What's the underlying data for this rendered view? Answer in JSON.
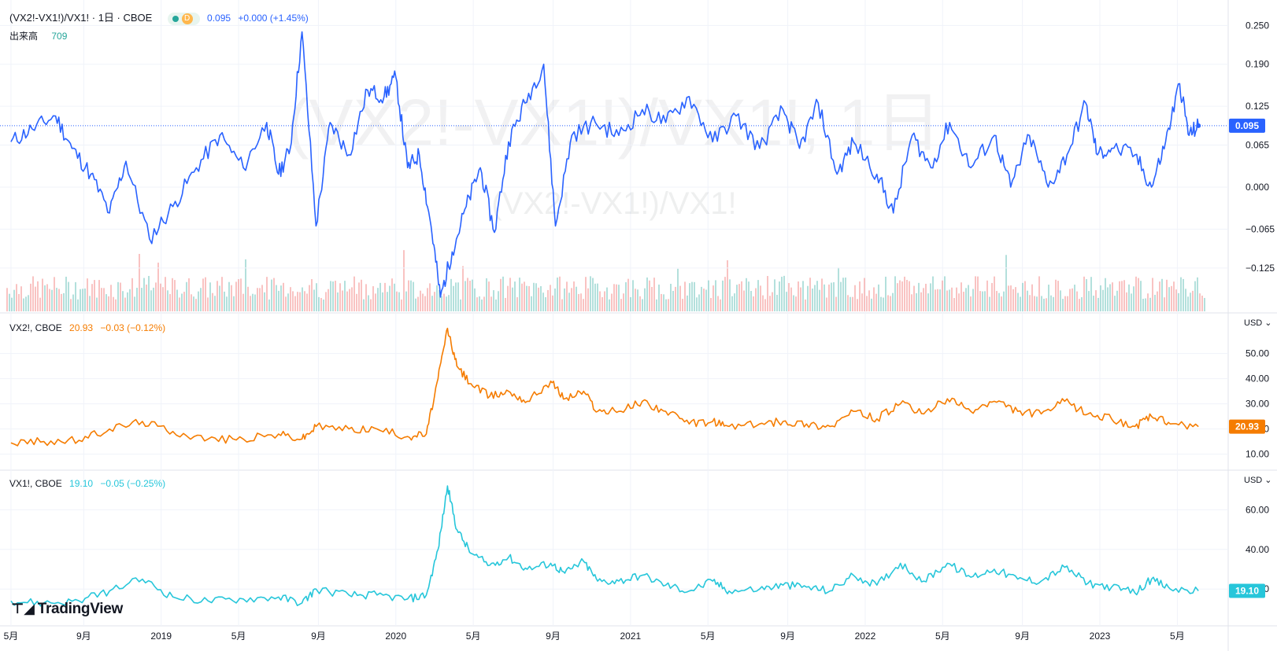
{
  "colors": {
    "main": "#2962ff",
    "vx2": "#f57c00",
    "vx1": "#26c6da",
    "vol_up": "#26a69a",
    "vol_down": "#ef5350",
    "grid": "#f0f3fa",
    "axis_text": "#131722"
  },
  "header": {
    "symbol": "(VX2!-VX1!)/VX1! · 1日 · CBOE",
    "badge_letter": "D",
    "value": "0.095",
    "change": "+0.000 (+1.45%)",
    "volume_label": "出来高",
    "volume_value": "709"
  },
  "watermark": {
    "main": "(VX2!-VX1!)/VX1!, 1日",
    "sub": "(VX2!-VX1!)/VX1!"
  },
  "pane2": {
    "symbol": "VX2!, CBOE",
    "value": "20.93",
    "change": "−0.03 (−0.12%)",
    "currency": "USD"
  },
  "pane3": {
    "symbol": "VX1!, CBOE",
    "value": "19.10",
    "change": "−0.05 (−0.25%)",
    "currency": "USD"
  },
  "logo": "TradingView",
  "chart_data": [
    {
      "type": "line",
      "name": "(VX2!-VX1!)/VX1!",
      "y_ticks": [
        "0.250",
        "0.190",
        "0.125",
        "0.065",
        "0.000",
        "−0.065",
        "−0.125"
      ],
      "y_tick_values": [
        0.25,
        0.19,
        0.125,
        0.065,
        0.0,
        -0.065,
        -0.125
      ],
      "last_value": "0.095",
      "ylim": [
        -0.175,
        0.265
      ],
      "points": [
        [
          2018.36,
          0.07
        ],
        [
          2018.45,
          0.09
        ],
        [
          2018.55,
          0.11
        ],
        [
          2018.62,
          0.06
        ],
        [
          2018.7,
          0.02
        ],
        [
          2018.78,
          -0.04
        ],
        [
          2018.85,
          0.04
        ],
        [
          2018.95,
          -0.08
        ],
        [
          2019.05,
          -0.03
        ],
        [
          2019.15,
          0.03
        ],
        [
          2019.25,
          0.08
        ],
        [
          2019.35,
          0.03
        ],
        [
          2019.45,
          0.1
        ],
        [
          2019.5,
          0.02
        ],
        [
          2019.55,
          0.06
        ],
        [
          2019.6,
          0.24
        ],
        [
          2019.66,
          -0.06
        ],
        [
          2019.72,
          0.1
        ],
        [
          2019.8,
          0.05
        ],
        [
          2019.88,
          0.15
        ],
        [
          2019.95,
          0.14
        ],
        [
          2020.0,
          0.17
        ],
        [
          2020.05,
          0.03
        ],
        [
          2020.1,
          0.05
        ],
        [
          2020.15,
          -0.06
        ],
        [
          2020.19,
          -0.17
        ],
        [
          2020.24,
          -0.1
        ],
        [
          2020.3,
          -0.03
        ],
        [
          2020.36,
          0.03
        ],
        [
          2020.42,
          -0.07
        ],
        [
          2020.48,
          0.07
        ],
        [
          2020.55,
          0.13
        ],
        [
          2020.63,
          0.19
        ],
        [
          2020.68,
          -0.06
        ],
        [
          2020.75,
          0.08
        ],
        [
          2020.85,
          0.1
        ],
        [
          2020.95,
          0.08
        ],
        [
          2021.05,
          0.12
        ],
        [
          2021.15,
          0.1
        ],
        [
          2021.25,
          0.14
        ],
        [
          2021.35,
          0.07
        ],
        [
          2021.45,
          0.11
        ],
        [
          2021.55,
          0.06
        ],
        [
          2021.65,
          0.12
        ],
        [
          2021.72,
          0.06
        ],
        [
          2021.8,
          0.13
        ],
        [
          2021.88,
          0.02
        ],
        [
          2021.95,
          0.07
        ],
        [
          2022.05,
          0.02
        ],
        [
          2022.12,
          -0.04
        ],
        [
          2022.2,
          0.08
        ],
        [
          2022.28,
          0.03
        ],
        [
          2022.36,
          0.1
        ],
        [
          2022.45,
          0.03
        ],
        [
          2022.55,
          0.08
        ],
        [
          2022.62,
          0.0
        ],
        [
          2022.7,
          0.08
        ],
        [
          2022.78,
          0.0
        ],
        [
          2022.86,
          0.05
        ],
        [
          2022.94,
          0.13
        ],
        [
          2022.99,
          0.05
        ],
        [
          2023.05,
          0.06
        ],
        [
          2023.15,
          0.05
        ],
        [
          2023.22,
          0.0
        ],
        [
          2023.28,
          0.07
        ],
        [
          2023.34,
          0.16
        ],
        [
          2023.38,
          0.08
        ],
        [
          2023.42,
          0.095
        ]
      ]
    },
    {
      "type": "line",
      "name": "VX2!",
      "y_ticks": [
        "50.00",
        "40.00",
        "30.00",
        "20.00",
        "10.00"
      ],
      "y_tick_values": [
        50,
        40,
        30,
        20,
        10
      ],
      "last_value": "20.93",
      "ylim": [
        8,
        63
      ],
      "points": [
        [
          2018.36,
          14.5
        ],
        [
          2018.5,
          15
        ],
        [
          2018.65,
          15.5
        ],
        [
          2018.78,
          20
        ],
        [
          2018.92,
          23
        ],
        [
          2019.05,
          19
        ],
        [
          2019.2,
          16
        ],
        [
          2019.35,
          16
        ],
        [
          2019.5,
          18
        ],
        [
          2019.6,
          16
        ],
        [
          2019.66,
          21
        ],
        [
          2019.8,
          20
        ],
        [
          2019.92,
          20
        ],
        [
          2020.05,
          17
        ],
        [
          2020.13,
          18
        ],
        [
          2020.18,
          40
        ],
        [
          2020.22,
          60
        ],
        [
          2020.26,
          45
        ],
        [
          2020.32,
          38
        ],
        [
          2020.4,
          33
        ],
        [
          2020.48,
          35
        ],
        [
          2020.56,
          31
        ],
        [
          2020.66,
          39
        ],
        [
          2020.72,
          32
        ],
        [
          2020.8,
          35
        ],
        [
          2020.86,
          27
        ],
        [
          2020.95,
          27
        ],
        [
          2021.05,
          31
        ],
        [
          2021.15,
          27
        ],
        [
          2021.25,
          22
        ],
        [
          2021.35,
          23
        ],
        [
          2021.42,
          21
        ],
        [
          2021.55,
          22
        ],
        [
          2021.65,
          23
        ],
        [
          2021.75,
          22
        ],
        [
          2021.85,
          21
        ],
        [
          2021.95,
          27
        ],
        [
          2022.05,
          24
        ],
        [
          2022.15,
          30
        ],
        [
          2022.25,
          26
        ],
        [
          2022.35,
          32
        ],
        [
          2022.45,
          27
        ],
        [
          2022.55,
          31
        ],
        [
          2022.65,
          27
        ],
        [
          2022.75,
          26
        ],
        [
          2022.85,
          31
        ],
        [
          2022.95,
          26
        ],
        [
          2023.05,
          24
        ],
        [
          2023.15,
          21
        ],
        [
          2023.22,
          25
        ],
        [
          2023.3,
          22
        ],
        [
          2023.42,
          20.93
        ]
      ]
    },
    {
      "type": "line",
      "name": "VX1!",
      "y_ticks": [
        "60.00",
        "40.00",
        "20.00"
      ],
      "y_tick_values": [
        60,
        40,
        20
      ],
      "last_value": "19.10",
      "ylim": [
        7,
        76
      ],
      "points": [
        [
          2018.36,
          14
        ],
        [
          2018.5,
          13
        ],
        [
          2018.65,
          14
        ],
        [
          2018.78,
          19
        ],
        [
          2018.92,
          25
        ],
        [
          2019.05,
          16
        ],
        [
          2019.2,
          14
        ],
        [
          2019.35,
          15
        ],
        [
          2019.5,
          16
        ],
        [
          2019.6,
          13
        ],
        [
          2019.66,
          20
        ],
        [
          2019.8,
          17
        ],
        [
          2019.92,
          17
        ],
        [
          2020.05,
          15
        ],
        [
          2020.13,
          17
        ],
        [
          2020.18,
          40
        ],
        [
          2020.22,
          72
        ],
        [
          2020.26,
          50
        ],
        [
          2020.32,
          38
        ],
        [
          2020.4,
          32
        ],
        [
          2020.48,
          36
        ],
        [
          2020.56,
          30
        ],
        [
          2020.66,
          33
        ],
        [
          2020.72,
          28
        ],
        [
          2020.8,
          34
        ],
        [
          2020.86,
          24
        ],
        [
          2020.95,
          24
        ],
        [
          2021.05,
          27
        ],
        [
          2021.15,
          22
        ],
        [
          2021.25,
          19
        ],
        [
          2021.35,
          24
        ],
        [
          2021.42,
          19
        ],
        [
          2021.55,
          20
        ],
        [
          2021.65,
          22
        ],
        [
          2021.75,
          21
        ],
        [
          2021.85,
          19
        ],
        [
          2021.95,
          27
        ],
        [
          2022.05,
          22
        ],
        [
          2022.15,
          33
        ],
        [
          2022.25,
          24
        ],
        [
          2022.35,
          33
        ],
        [
          2022.45,
          26
        ],
        [
          2022.55,
          30
        ],
        [
          2022.65,
          25
        ],
        [
          2022.75,
          24
        ],
        [
          2022.85,
          31
        ],
        [
          2022.95,
          23
        ],
        [
          2023.05,
          21
        ],
        [
          2023.15,
          18
        ],
        [
          2023.22,
          25
        ],
        [
          2023.3,
          20
        ],
        [
          2023.42,
          19.1
        ]
      ]
    }
  ],
  "x_axis": {
    "ticks": [
      {
        "label": "5月",
        "t": 2018.36
      },
      {
        "label": "9月",
        "t": 2018.67
      },
      {
        "label": "2019",
        "t": 2019.0
      },
      {
        "label": "5月",
        "t": 2019.33
      },
      {
        "label": "9月",
        "t": 2019.67
      },
      {
        "label": "2020",
        "t": 2020.0
      },
      {
        "label": "5月",
        "t": 2020.33
      },
      {
        "label": "9月",
        "t": 2020.67
      },
      {
        "label": "2021",
        "t": 2021.0
      },
      {
        "label": "5月",
        "t": 2021.33
      },
      {
        "label": "9月",
        "t": 2021.67
      },
      {
        "label": "2022",
        "t": 2022.0
      },
      {
        "label": "5月",
        "t": 2022.33
      },
      {
        "label": "9月",
        "t": 2022.67
      },
      {
        "label": "2023",
        "t": 2023.0
      },
      {
        "label": "5月",
        "t": 2023.33
      }
    ]
  }
}
